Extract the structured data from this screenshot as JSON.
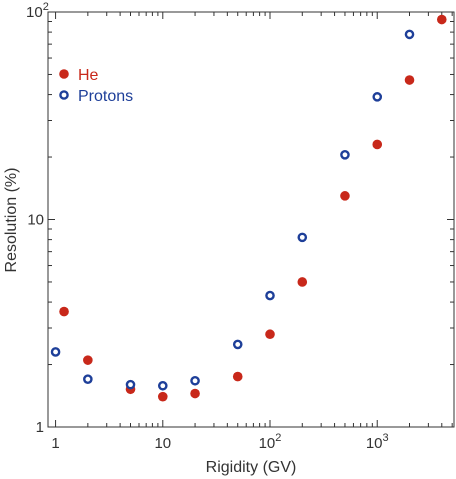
{
  "chart_data": {
    "type": "scatter",
    "xlabel": "Rigidity (GV)",
    "ylabel": "Resolution (%)",
    "xscale": "log",
    "yscale": "log",
    "xlim": [
      0.85,
      5200
    ],
    "ylim": [
      1,
      100
    ],
    "grid": false,
    "legend_placement": "top-left",
    "x_ticks": [
      {
        "value": 1,
        "base": "1",
        "exp": ""
      },
      {
        "value": 10,
        "base": "10",
        "exp": ""
      },
      {
        "value": 100,
        "base": "10",
        "exp": "2"
      },
      {
        "value": 1000,
        "base": "10",
        "exp": "3"
      }
    ],
    "y_ticks": [
      {
        "value": 1,
        "base": "1",
        "exp": ""
      },
      {
        "value": 10,
        "base": "10",
        "exp": ""
      },
      {
        "value": 100,
        "base": "10",
        "exp": "2"
      }
    ],
    "series": [
      {
        "name": "He",
        "color": "#c8281a",
        "marker": "filled-circle",
        "x": [
          1.2,
          2,
          5,
          10,
          20,
          50,
          100,
          200,
          500,
          1000,
          2000,
          4000
        ],
        "y": [
          3.6,
          2.1,
          1.52,
          1.4,
          1.45,
          1.75,
          2.8,
          5.0,
          13.0,
          23.0,
          47.0,
          92.0
        ]
      },
      {
        "name": "Protons",
        "color": "#1e3f99",
        "marker": "open-circle",
        "x": [
          1,
          2,
          5,
          10,
          20,
          50,
          100,
          200,
          500,
          1000,
          2000
        ],
        "y": [
          2.3,
          1.7,
          1.6,
          1.58,
          1.67,
          2.5,
          4.3,
          8.2,
          20.5,
          39.0,
          78.0
        ]
      }
    ]
  }
}
